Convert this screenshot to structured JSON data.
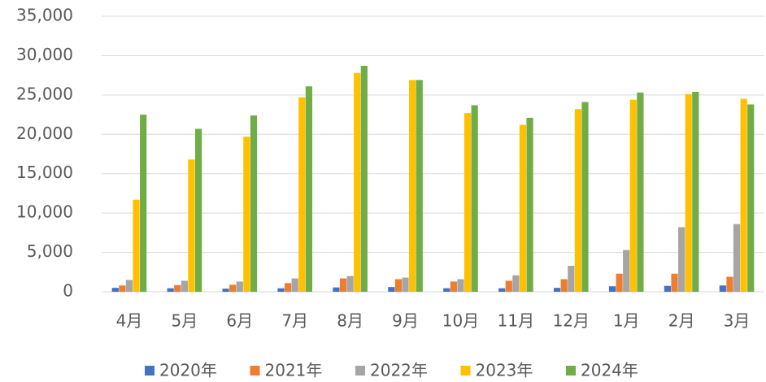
{
  "chart_data": {
    "type": "bar",
    "categories": [
      "4月",
      "5月",
      "6月",
      "7月",
      "8月",
      "9月",
      "10月",
      "11月",
      "12月",
      "1月",
      "2月",
      "3月"
    ],
    "series": [
      {
        "name": "2020年",
        "color": "#4472c4",
        "values": [
          500,
          450,
          400,
          450,
          550,
          600,
          450,
          450,
          500,
          700,
          750,
          800
        ]
      },
      {
        "name": "2021年",
        "color": "#ed7d31",
        "values": [
          800,
          850,
          900,
          1100,
          1700,
          1600,
          1300,
          1400,
          1600,
          2300,
          2300,
          1900
        ]
      },
      {
        "name": "2022年",
        "color": "#a5a5a5",
        "values": [
          1500,
          1400,
          1300,
          1700,
          2000,
          1800,
          1600,
          2100,
          3300,
          5300,
          8200,
          8600
        ]
      },
      {
        "name": "2023年",
        "color": "#ffc000",
        "values": [
          11700,
          16800,
          19700,
          24700,
          27800,
          26900,
          22700,
          21200,
          23200,
          24400,
          25100,
          24500
        ]
      },
      {
        "name": "2024年",
        "color": "#70ad47",
        "values": [
          22500,
          20700,
          22400,
          26100,
          28700,
          26900,
          23700,
          22100,
          24100,
          25300,
          25400,
          23800
        ]
      }
    ],
    "ylim": [
      0,
      35000
    ],
    "yticks": [
      0,
      {
        "value": 5000,
        "label": "5,000"
      },
      {
        "value": 10000,
        "label": "10,000"
      },
      {
        "value": 15000,
        "label": "15,000"
      },
      {
        "value": 20000,
        "label": "20,000"
      },
      {
        "value": 25000,
        "label": "25,000"
      },
      {
        "value": 30000,
        "label": "30,000"
      },
      {
        "value": 35000,
        "label": "35,000"
      }
    ],
    "grid": true,
    "legend": "bottom"
  }
}
